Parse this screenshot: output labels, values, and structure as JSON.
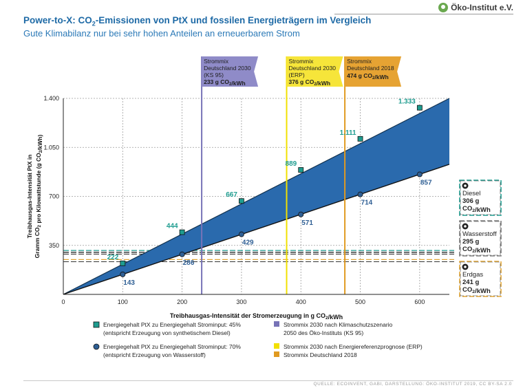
{
  "header": {
    "title_parts": [
      "Power-to-X: CO",
      "2",
      "-Emissionen von PtX und fossilen Energieträgern im Vergleich"
    ],
    "subtitle": "Gute Klimabilanz nur bei sehr hohen Anteilen an erneuerbarem Strom",
    "logo": "Öko-Institut e.V."
  },
  "footer": {
    "source": "QUELLE: ECOINVENT, GABI, DARSTELLUNG: ÖKO-INSTITUT 2019, CC BY-SA 2.0"
  },
  "chart_data": {
    "type": "line",
    "xlabel": "Treibhausgas-Intensität der Stromerzeugung in g CO2/kWh",
    "ylabel_line1": "Treibhausgas-Intensität PtX in",
    "ylabel_line2": "Gramm CO2 pro Kilowattstunde (g CO2/kWh)",
    "xlim": [
      0,
      650
    ],
    "ylim": [
      0,
      1400
    ],
    "x_ticks": [
      0,
      100,
      200,
      300,
      400,
      500,
      600
    ],
    "y_ticks": [
      350,
      700,
      1050,
      1400
    ],
    "y_tick_labels": [
      "350",
      "700",
      "1.050",
      "1.400"
    ],
    "series": [
      {
        "name": "Energiegehalt PtX zu Energiegehalt Strominput: 45%",
        "note": "(entspricht Erzeugung von synthetischem Diesel)",
        "color": "#1e9c8f",
        "marker": "square",
        "x": [
          0,
          100,
          200,
          300,
          400,
          500,
          600
        ],
        "y": [
          0,
          222,
          444,
          667,
          889,
          1111,
          1333
        ],
        "labels": [
          "",
          "222",
          "444",
          "667",
          "889",
          "1.111",
          "1.333"
        ]
      },
      {
        "name": "Energiegehalt PtX zu Energiegehalt Strominput: 70%",
        "note": "(entspricht Erzeugung von Wasserstoff)",
        "color": "#2f5f94",
        "marker": "circle",
        "x": [
          0,
          100,
          200,
          300,
          400,
          500,
          600
        ],
        "y": [
          0,
          143,
          286,
          429,
          571,
          714,
          857
        ],
        "labels": [
          "",
          "143",
          "286",
          "429",
          "571",
          "714",
          "857"
        ]
      }
    ],
    "band_color": "#2a6aad",
    "band_upper_end": 1400,
    "band_lower_end": 929,
    "fossil": [
      {
        "name": "Diesel",
        "value": 306,
        "value_label": "306 g",
        "unit": "CO2/kWh",
        "color": "#1e9c8f",
        "icon": "diesel-drop-icon"
      },
      {
        "name": "Wasserstoff",
        "value": 295,
        "value_label": "295 g",
        "unit": "CO2/kWh",
        "color": "#7a7a7a",
        "icon": "hydrogen-icon"
      },
      {
        "name": "Erdgas",
        "value": 241,
        "value_label": "241 g",
        "unit": "CO2/kWh",
        "color": "#e3a635",
        "icon": "flame-icon"
      }
    ],
    "strommix": [
      {
        "key": "ks95",
        "line1": "Strommix",
        "line2": "Deutschland 2030",
        "line3": "(KS 95)",
        "value": 233,
        "value_label": "233 g CO2/kWh",
        "color": "#7773b7",
        "banner": "#8f8bc8"
      },
      {
        "key": "erp",
        "line1": "Strommix",
        "line2": "Deutschland 2030",
        "line3": "(ERP)",
        "value": 376,
        "value_label": "376 g CO2/kWh",
        "color": "#f2e000",
        "banner": "#f6e53a"
      },
      {
        "key": "sm2018",
        "line1": "Strommix",
        "line2": "Deutschland 2018",
        "line3": "",
        "value": 474,
        "value_label": "474 g CO2/kWh",
        "color": "#e09a20",
        "banner": "#e6a333"
      }
    ],
    "legend": {
      "series_items": [
        {
          "label": "Energiegehalt PtX zu Energiegehalt Strominput: 45%",
          "sub": "(entspricht Erzeugung von synthetischem Diesel)"
        },
        {
          "label": "Energiegehalt PtX zu Energiegehalt Strominput: 70%",
          "sub": "(entspricht Erzeugung von Wasserstoff)"
        }
      ],
      "strommix_items": [
        {
          "label": "Strommix 2030 nach Klimaschutzszenario",
          "sub": "2050 des Öko-Instituts (KS 95)"
        },
        {
          "label": "Strommix 2030 nach Energiereferenzprognose (ERP)",
          "sub": ""
        },
        {
          "label": "Strommix Deutschland 2018",
          "sub": ""
        }
      ]
    }
  }
}
